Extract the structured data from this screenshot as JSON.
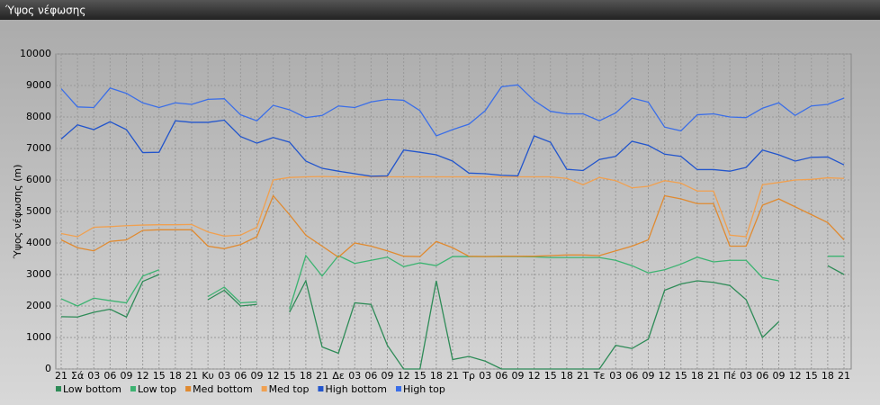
{
  "chart_data": {
    "type": "line",
    "title": "Ύψος νέφωσης",
    "ylabel": "Ύψος νέφωσης (m)",
    "categories": [
      "21",
      "Σά",
      "03",
      "06",
      "09",
      "12",
      "15",
      "18",
      "21",
      "Κυ",
      "03",
      "06",
      "09",
      "12",
      "15",
      "18",
      "21",
      "Δε",
      "03",
      "06",
      "09",
      "12",
      "15",
      "18",
      "21",
      "Τρ",
      "03",
      "06",
      "09",
      "12",
      "15",
      "18",
      "21",
      "Τε",
      "03",
      "06",
      "09",
      "12",
      "15",
      "18",
      "21",
      "Πέ",
      "03",
      "06",
      "09",
      "12",
      "15",
      "18",
      "21"
    ],
    "ylim": [
      0,
      10000
    ],
    "yticks": [
      0,
      1000,
      2000,
      3000,
      4000,
      5000,
      6000,
      7000,
      8000,
      9000,
      10000
    ],
    "grid": true,
    "series": [
      {
        "name": "Low bottom",
        "color": "#2e8b57",
        "values": [
          1660,
          1650,
          1800,
          1900,
          1650,
          2780,
          3000,
          null,
          null,
          2200,
          2500,
          2000,
          2050,
          null,
          1800,
          2800,
          700,
          500,
          2100,
          2050,
          750,
          0,
          0,
          2800,
          300,
          400,
          250,
          0,
          0,
          0,
          0,
          0,
          0,
          0,
          750,
          650,
          950,
          2500,
          2700,
          2800,
          2750,
          2650,
          2200,
          1000,
          1500,
          null,
          null,
          3280,
          3000
        ]
      },
      {
        "name": "Low top",
        "color": "#3cb371",
        "values": [
          2230,
          2000,
          2250,
          2170,
          2100,
          2950,
          3150,
          null,
          null,
          2300,
          2600,
          2100,
          2130,
          null,
          1900,
          3600,
          2950,
          3600,
          3350,
          3450,
          3550,
          3250,
          3370,
          3280,
          3570,
          3570,
          3570,
          3570,
          3570,
          3560,
          3540,
          3540,
          3540,
          3540,
          3450,
          3280,
          3050,
          3150,
          3330,
          3550,
          3400,
          3450,
          3450,
          2900,
          2800,
          null,
          null,
          3580,
          3580
        ]
      },
      {
        "name": "Med bottom",
        "color": "#e08a30",
        "values": [
          4100,
          3850,
          3750,
          4050,
          4100,
          4400,
          4420,
          4420,
          4420,
          3900,
          3820,
          3950,
          4200,
          5500,
          4900,
          4250,
          3900,
          3550,
          4000,
          3900,
          3750,
          3580,
          3570,
          4050,
          3850,
          3580,
          3570,
          3580,
          3580,
          3580,
          3600,
          3620,
          3620,
          3600,
          3750,
          3900,
          4100,
          5500,
          5400,
          5250,
          5250,
          3900,
          3900,
          5200,
          5400,
          5150,
          4900,
          4650,
          4100
        ]
      },
      {
        "name": "Med top",
        "color": "#f0a050",
        "values": [
          4300,
          4200,
          4500,
          4520,
          4550,
          4570,
          4580,
          4580,
          4590,
          4350,
          4220,
          4250,
          4500,
          6000,
          6080,
          6100,
          6110,
          6100,
          6100,
          6100,
          6100,
          6100,
          6100,
          6100,
          6100,
          6100,
          6100,
          6100,
          6100,
          6100,
          6100,
          6050,
          5850,
          6080,
          5980,
          5750,
          5800,
          5980,
          5900,
          5650,
          5650,
          4250,
          4200,
          5850,
          5920,
          6000,
          6020,
          6070,
          6050
        ]
      },
      {
        "name": "High bottom",
        "color": "#2255cc",
        "values": [
          7300,
          7750,
          7600,
          7850,
          7600,
          6870,
          6880,
          7880,
          7830,
          7830,
          7900,
          7380,
          7170,
          7350,
          7200,
          6600,
          6370,
          6280,
          6200,
          6120,
          6130,
          6950,
          6880,
          6800,
          6600,
          6220,
          6200,
          6150,
          6130,
          7400,
          7200,
          6340,
          6300,
          6650,
          6750,
          7230,
          7100,
          6820,
          6750,
          6330,
          6330,
          6280,
          6400,
          6950,
          6800,
          6600,
          6720,
          6730,
          6480
        ]
      },
      {
        "name": "High top",
        "color": "#3a6ee8",
        "values": [
          8900,
          8320,
          8300,
          8920,
          8750,
          8450,
          8300,
          8450,
          8400,
          8560,
          8580,
          8070,
          7880,
          8370,
          8230,
          7980,
          8050,
          8350,
          8300,
          8480,
          8560,
          8530,
          8200,
          7400,
          7600,
          7770,
          8200,
          8960,
          9020,
          8520,
          8180,
          8100,
          8100,
          7880,
          8130,
          8600,
          8470,
          7680,
          7560,
          8070,
          8100,
          8000,
          7980,
          8280,
          8450,
          8050,
          8350,
          8400,
          8600
        ]
      }
    ]
  }
}
